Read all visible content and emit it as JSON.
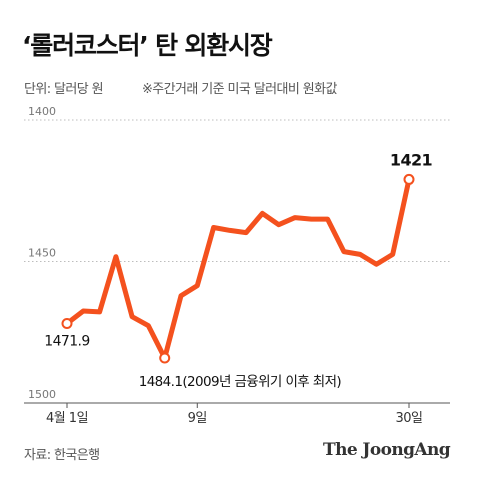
{
  "header": {
    "title": "‘롤러코스터’ 탄 외환시장",
    "unit": "단위: 달러당 원",
    "note": "※주간거래 기준 미국 달러대비 원화값"
  },
  "footer": {
    "source": "자료: 한국은행",
    "brand": "The JoongAng"
  },
  "chart_data": {
    "type": "line",
    "title": "‘롤러코스터’ 탄 외환시장",
    "xlabel": "",
    "ylabel": "",
    "y_axis_inverted": true,
    "ylim": [
      1400,
      1500
    ],
    "yticks": [
      1400,
      1450,
      1500
    ],
    "grid": "horizontal dotted",
    "x_tick_labels": [
      {
        "index": 0,
        "label": "4월 1일"
      },
      {
        "index": 8,
        "label": "9일"
      },
      {
        "index": 21,
        "label": "30일"
      }
    ],
    "series": [
      {
        "values": [
          1471.9,
          1467.5,
          1467.8,
          1448.3,
          1469.5,
          1472.7,
          1484.1,
          1462.1,
          1458.5,
          1438.0,
          1439.0,
          1439.8,
          1433.0,
          1437.0,
          1434.5,
          1435.0,
          1435.0,
          1446.5,
          1447.5,
          1451.0,
          1447.5,
          1421.0
        ],
        "color": "#f4511e"
      }
    ],
    "annotations": [
      {
        "index": 0,
        "label": "1471.9"
      },
      {
        "index": 6,
        "label": "1484.1(2009년 금융위기 이후 최저)"
      },
      {
        "index": 21,
        "label": "1421"
      }
    ]
  }
}
